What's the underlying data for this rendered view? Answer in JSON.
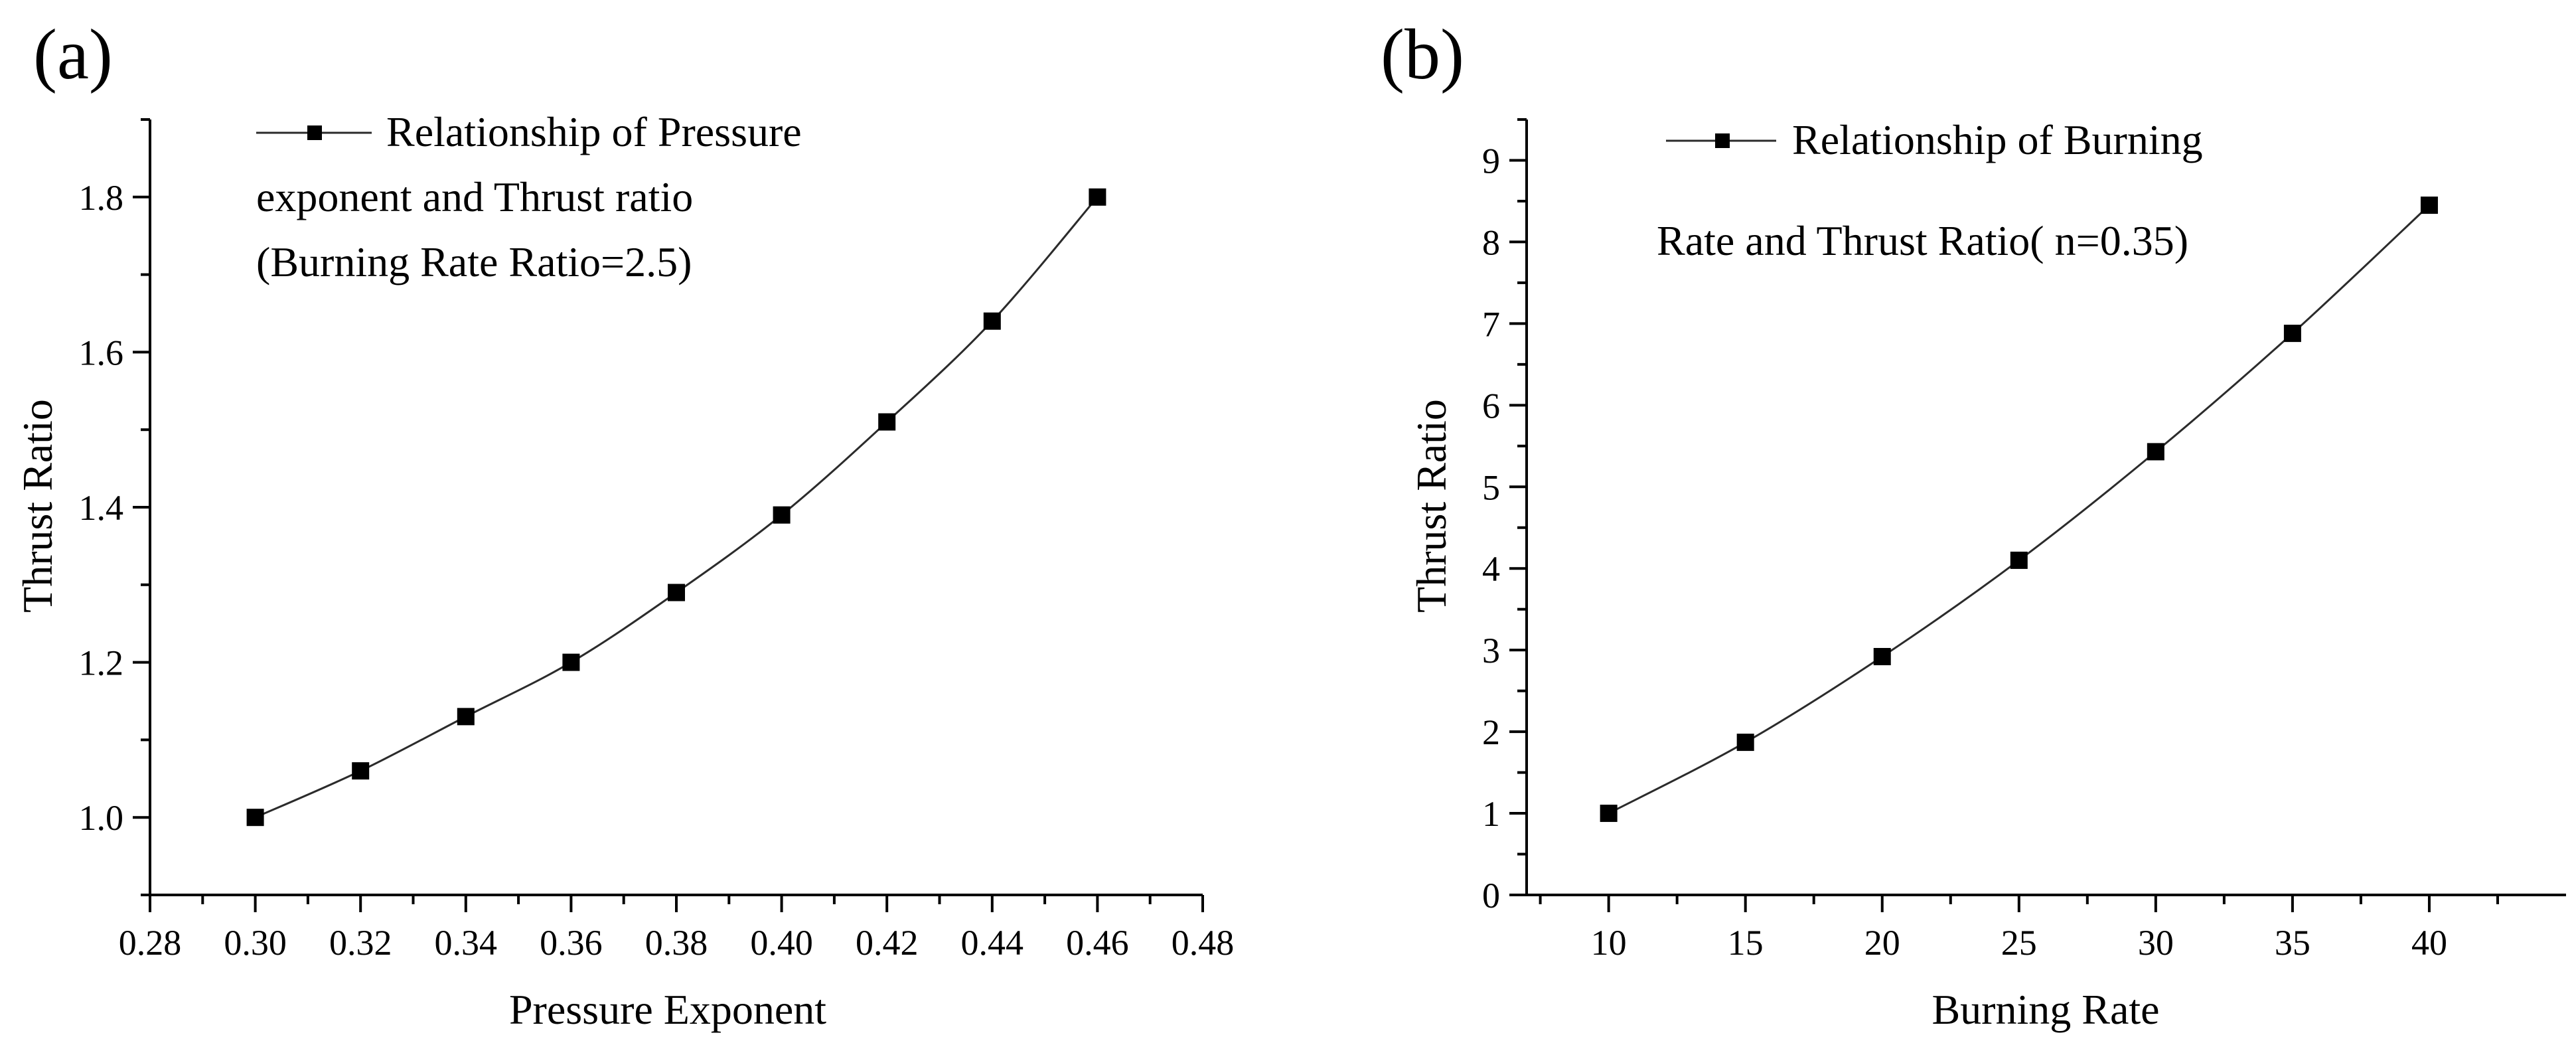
{
  "chart_data": [
    {
      "type": "line",
      "panel_label": "(a)",
      "xlabel": "Pressure Exponent",
      "ylabel": "Thrust Ratio",
      "xlim": [
        0.28,
        0.48
      ],
      "ylim": [
        0.9,
        1.9
      ],
      "xticks": [
        "0.28",
        "0.30",
        "0.32",
        "0.34",
        "0.36",
        "0.38",
        "0.40",
        "0.42",
        "0.44",
        "0.46",
        "0.48"
      ],
      "yticks": [
        "1.0",
        "1.2",
        "1.4",
        "1.6",
        "1.8"
      ],
      "grid": false,
      "legend_lines": [
        "Relationship of Pressure",
        "exponent and Thrust ratio",
        "(Burning Rate Ratio=2.5)"
      ],
      "series": [
        {
          "name": "Relationship of Pressure exponent and Thrust ratio (Burning Rate Ratio=2.5)",
          "x": [
            0.3,
            0.32,
            0.34,
            0.36,
            0.38,
            0.4,
            0.42,
            0.44,
            0.46
          ],
          "y": [
            1.0,
            1.06,
            1.13,
            1.2,
            1.29,
            1.39,
            1.51,
            1.64,
            1.8
          ]
        }
      ]
    },
    {
      "type": "line",
      "panel_label": "(b)",
      "xlabel": "Burning Rate",
      "ylabel": "Thrust Ratio",
      "xlim": [
        7,
        45
      ],
      "ylim": [
        0,
        9.5
      ],
      "xticks": [
        "10",
        "15",
        "20",
        "25",
        "30",
        "35",
        "40"
      ],
      "yticks": [
        "0",
        "1",
        "2",
        "3",
        "4",
        "5",
        "6",
        "7",
        "8",
        "9"
      ],
      "grid": false,
      "legend_lines": [
        "Relationship of Burning",
        "Rate and Thrust Ratio( n=0.35)"
      ],
      "series": [
        {
          "name": "Relationship of Burning Rate and Thrust Ratio( n=0.35)",
          "x": [
            10,
            15,
            20,
            25,
            30,
            35,
            40
          ],
          "y": [
            1.0,
            1.87,
            2.92,
            4.1,
            5.43,
            6.88,
            8.45
          ]
        }
      ]
    }
  ]
}
